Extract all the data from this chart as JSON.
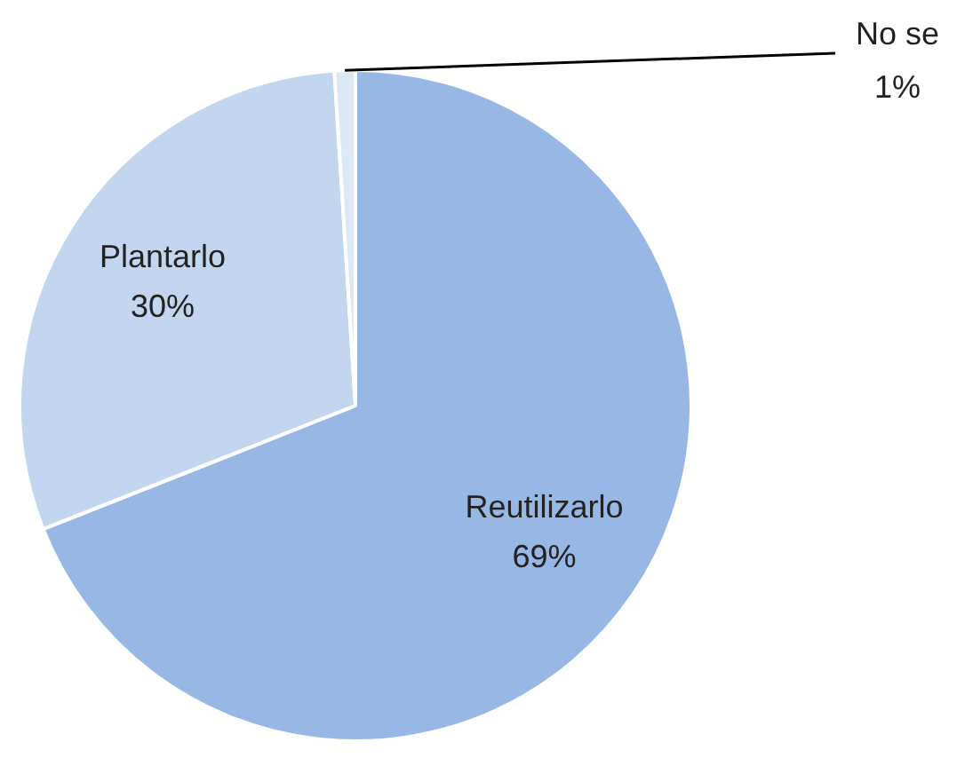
{
  "chart_data": {
    "type": "pie",
    "categories": [
      "Reutilizarlo",
      "Plantarlo",
      "No se"
    ],
    "values": [
      69,
      30,
      1
    ],
    "value_labels": [
      "69%",
      "30%",
      "1%"
    ],
    "colors": [
      "#97b8e4",
      "#c3d6ef",
      "#dde8f6"
    ],
    "legend": false
  }
}
